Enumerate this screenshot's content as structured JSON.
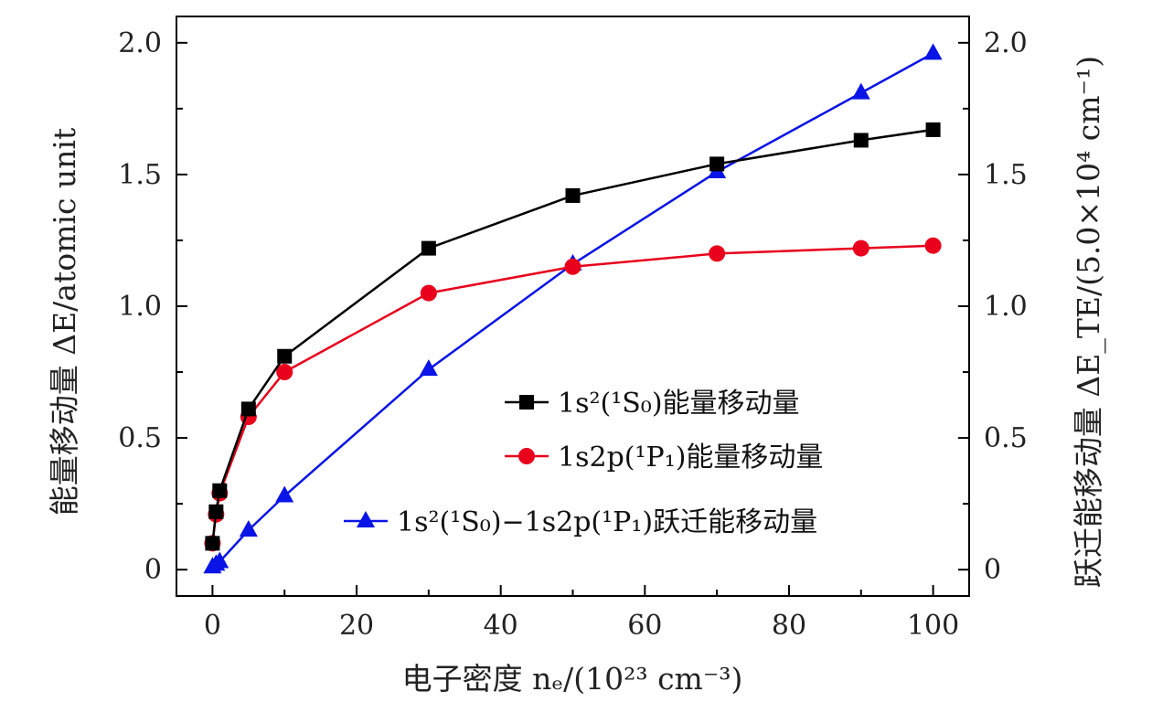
{
  "chart_data": {
    "type": "line",
    "xlabel": "电子密度 nₑ/(10²³ cm⁻³)",
    "ylabel": "能量移动量 ΔE/atomic unit",
    "ylabel_right": "跃迁能移动量 ΔE_TE/(5.0×10⁴ cm⁻¹)",
    "xlim": [
      -5,
      105
    ],
    "ylim": [
      -0.1,
      2.1
    ],
    "y2lim": [
      -0.1,
      2.1
    ],
    "x_ticks": [
      "0",
      "20",
      "40",
      "60",
      "80",
      "100"
    ],
    "y_ticks": [
      "0",
      "0.5",
      "1.0",
      "1.5",
      "2.0"
    ],
    "y2_ticks": [
      "0",
      "0.5",
      "1.0",
      "1.5",
      "2.0"
    ],
    "grid": false,
    "legend_position": "right-center",
    "series": [
      {
        "name": "1s²(¹S₀)能量移动量",
        "color": "#000000",
        "marker": "square",
        "axis": "left",
        "x": [
          0,
          0.5,
          1,
          5,
          10,
          30,
          50,
          70,
          90,
          100
        ],
        "y": [
          0.1,
          0.22,
          0.3,
          0.61,
          0.81,
          1.22,
          1.42,
          1.54,
          1.63,
          1.67
        ]
      },
      {
        "name": "1s2p(¹P₁)能量移动量",
        "color": "#e8001c",
        "marker": "circle",
        "axis": "left",
        "x": [
          0,
          0.5,
          1,
          5,
          10,
          30,
          50,
          70,
          90,
          100
        ],
        "y": [
          0.1,
          0.21,
          0.29,
          0.58,
          0.75,
          1.05,
          1.15,
          1.2,
          1.22,
          1.23
        ]
      },
      {
        "name": "1s²(¹S₀)−1s2p(¹P₁)跃迁能移动量",
        "color": "#0a14e6",
        "marker": "triangle",
        "axis": "right",
        "x": [
          0,
          0.5,
          1,
          5,
          10,
          30,
          50,
          70,
          90,
          100
        ],
        "y": [
          0.01,
          0.02,
          0.03,
          0.15,
          0.28,
          0.76,
          1.16,
          1.51,
          1.81,
          1.96
        ]
      }
    ]
  }
}
